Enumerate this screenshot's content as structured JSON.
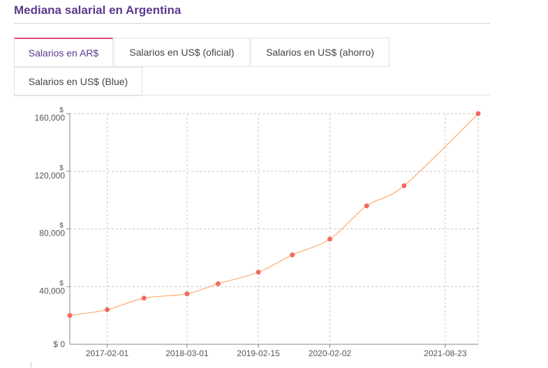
{
  "page": {
    "title": "Mediana salarial en Argentina"
  },
  "tabs": [
    {
      "label": "Salarios en AR$",
      "active": true
    },
    {
      "label": "Salarios en US$ (oficial)",
      "active": false
    },
    {
      "label": "Salarios en US$ (ahorro)",
      "active": false
    },
    {
      "label": "Salarios en US$ (Blue)",
      "active": false
    }
  ],
  "colors": {
    "title": "#5b3a8c",
    "active_tab_border": "#e0457b",
    "line": "#ffb07a",
    "point": "#f46a5e"
  },
  "chart_data": {
    "type": "line",
    "title": "",
    "xlabel": "",
    "ylabel": "",
    "y_unit": "$",
    "grid": true,
    "ylim": [
      0,
      160000
    ],
    "y_ticks": [
      0,
      40000,
      80000,
      120000,
      160000
    ],
    "y_tick_labels": [
      "0",
      "40,000",
      "80,000",
      "120,000",
      "160,000"
    ],
    "x_range": [
      "2016-08-01",
      "2022-02-01"
    ],
    "x_ticks": [
      "2017-02-01",
      "2018-03-01",
      "2019-02-15",
      "2020-02-02",
      "2021-08-23"
    ],
    "series": [
      {
        "name": "",
        "x": [
          "2016-08-01",
          "2017-02-01",
          "2017-08-01",
          "2018-03-01",
          "2018-08-01",
          "2019-02-15",
          "2019-08-01",
          "2020-02-02",
          "2020-08-01",
          "2021-02-01",
          "2022-02-01"
        ],
        "values": [
          20000,
          24000,
          32000,
          35000,
          42000,
          50000,
          62000,
          73000,
          96000,
          110000,
          160000
        ]
      }
    ]
  }
}
